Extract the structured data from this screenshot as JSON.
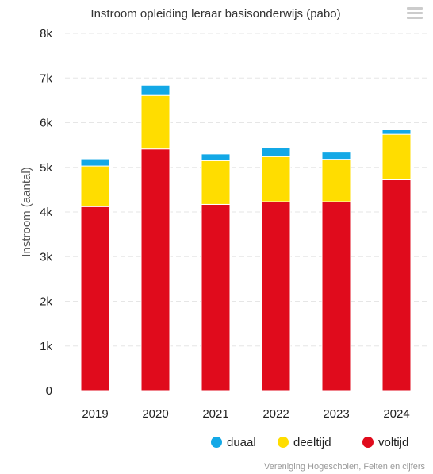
{
  "chart": {
    "title": "Instroom opleiding leraar basisonderwijs (pabo)",
    "credits": "Vereniging Hogescholen, Feiten en cijfers",
    "menu_icon": "hamburger-menu-icon"
  },
  "chart_data": {
    "type": "bar",
    "stacked": true,
    "categories": [
      "2019",
      "2020",
      "2021",
      "2022",
      "2023",
      "2024"
    ],
    "series": [
      {
        "name": "voltijd",
        "color": "#e00b1c",
        "values": [
          4120,
          5410,
          4170,
          4230,
          4230,
          4720
        ]
      },
      {
        "name": "deeltijd",
        "color": "#ffdd00",
        "values": [
          910,
          1200,
          980,
          1010,
          950,
          1020
        ]
      },
      {
        "name": "duaal",
        "color": "#13a8e6",
        "values": [
          160,
          230,
          150,
          200,
          160,
          100
        ]
      }
    ],
    "legend_order": [
      "duaal",
      "deeltijd",
      "voltijd"
    ],
    "legend_position": "bottom-right",
    "ylabel": "Instroom (aantal)",
    "xlabel": "",
    "ylim": [
      0,
      8000
    ],
    "yticks": [
      0,
      1000,
      2000,
      3000,
      4000,
      5000,
      6000,
      7000,
      8000
    ],
    "ytick_labels": [
      "0",
      "1k",
      "2k",
      "3k",
      "4k",
      "5k",
      "6k",
      "7k",
      "8k"
    ],
    "grid": true
  }
}
